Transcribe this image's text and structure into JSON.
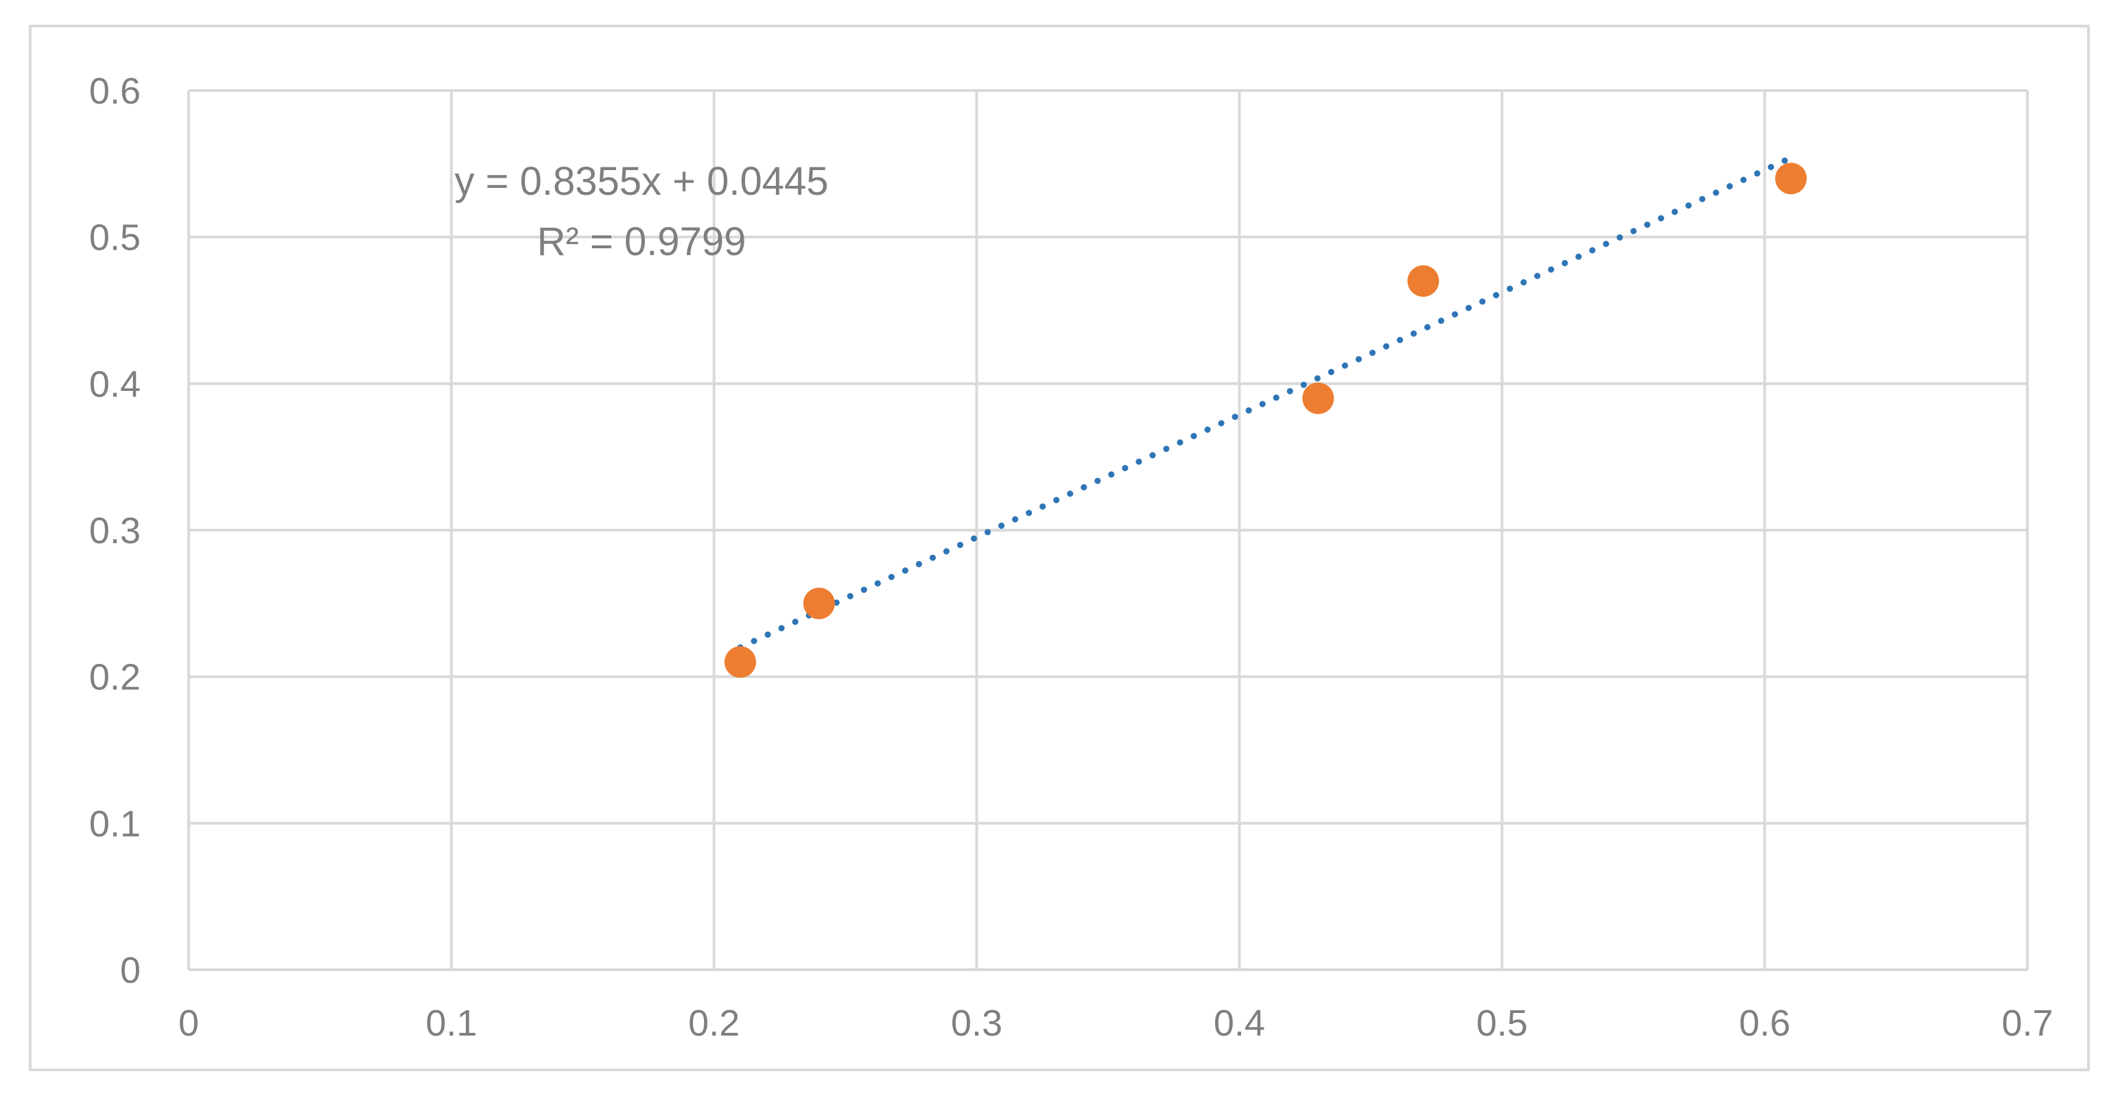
{
  "chart_data": {
    "type": "scatter",
    "title": "",
    "xlabel": "",
    "ylabel": "",
    "xlim": [
      0,
      0.7
    ],
    "ylim": [
      0,
      0.6
    ],
    "x_ticks": [
      "0",
      "0.1",
      "0.2",
      "0.3",
      "0.4",
      "0.5",
      "0.6",
      "0.7"
    ],
    "y_ticks": [
      "0",
      "0.1",
      "0.2",
      "0.3",
      "0.4",
      "0.5",
      "0.6"
    ],
    "grid": true,
    "legend": "none",
    "series": [
      {
        "points": [
          {
            "x": 0.21,
            "y": 0.21
          },
          {
            "x": 0.24,
            "y": 0.25
          },
          {
            "x": 0.43,
            "y": 0.39
          },
          {
            "x": 0.47,
            "y": 0.47
          },
          {
            "x": 0.61,
            "y": 0.54
          }
        ],
        "color": "#ed7d31"
      }
    ],
    "trendline": {
      "type": "linear",
      "slope": 0.8355,
      "intercept": 0.0445,
      "x_range": [
        0.21,
        0.61
      ],
      "style": "dotted",
      "color": "#2e75b6",
      "equation_label": "y = 0.8355x + 0.0445",
      "r2_label": "R² = 0.9799"
    },
    "colors": {
      "grid": "#d9d9d9",
      "text": "#7f7f7f"
    }
  }
}
